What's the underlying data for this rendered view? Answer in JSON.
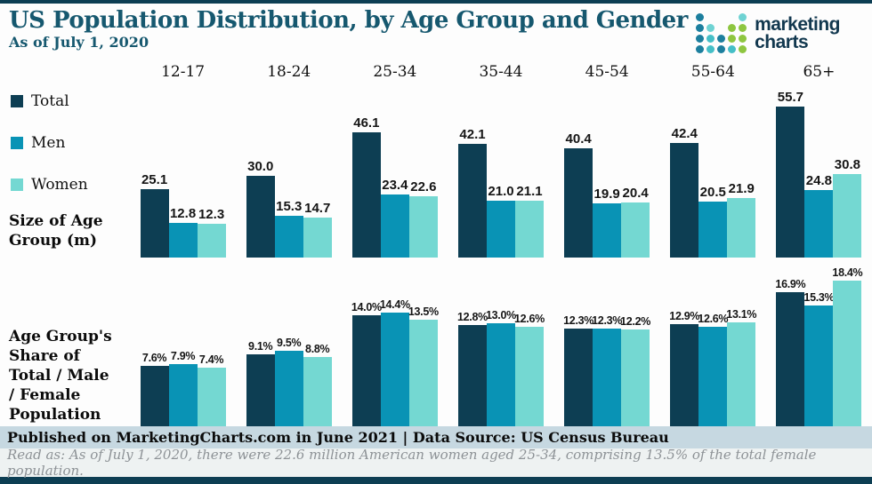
{
  "page": {
    "title": "US Population Distribution, by Age Group and Gender",
    "subtitle": "As of July 1, 2020",
    "footer": "Published on MarketingCharts.com in June 2021 | Data Source: US Census Bureau",
    "note": "Read as: As of July 1, 2020, there were 22.6 million American women aged 25-34, comprising 13.5% of the total female population."
  },
  "logo": {
    "text_line1": "marketing",
    "text_line2": "charts",
    "dot_colors": {
      "dark": "#1c7f9e",
      "mid": "#45bfc7",
      "green": "#8ec640",
      "light": "#6fd3d3"
    },
    "dot_grid": [
      [
        "dark",
        "",
        "",
        "",
        "light"
      ],
      [
        "dark",
        "light",
        "",
        "green",
        "green"
      ],
      [
        "dark",
        "mid",
        "dark",
        "green",
        "green"
      ],
      [
        "dark",
        "mid",
        "dark",
        "mid",
        "green"
      ]
    ]
  },
  "legend": [
    {
      "label": "Total",
      "color": "#0d3e53"
    },
    {
      "label": "Men",
      "color": "#0993b5"
    },
    {
      "label": "Women",
      "color": "#74d8d2"
    }
  ],
  "colors": {
    "accent_navy": "#0d3e53",
    "accent_teal": "#0993b5",
    "accent_cyan": "#74d8d2",
    "title_text": "#16586f",
    "footer_bg": "#c6d8e1",
    "note_bg": "#eef2f2"
  },
  "chart_data": [
    {
      "type": "bar",
      "title": "Size of Age Group (m)",
      "value_suffix": "",
      "categories": [
        "12-17",
        "18-24",
        "25-34",
        "35-44",
        "45-54",
        "55-64",
        "65+"
      ],
      "series": [
        {
          "name": "Total",
          "color": "#0d3e53",
          "values": [
            25.1,
            30.0,
            46.1,
            42.1,
            40.4,
            42.4,
            55.7
          ]
        },
        {
          "name": "Men",
          "color": "#0993b5",
          "values": [
            12.8,
            15.3,
            23.4,
            21.0,
            19.9,
            20.5,
            24.8
          ]
        },
        {
          "name": "Women",
          "color": "#74d8d2",
          "values": [
            12.3,
            14.7,
            22.6,
            21.1,
            20.4,
            21.9,
            30.8
          ]
        }
      ],
      "ylim": [
        0,
        60
      ],
      "legend_position": "left",
      "grid": false
    },
    {
      "type": "bar",
      "title": "Age Group's Share of Total / Male / Female Population",
      "value_suffix": "%",
      "categories": [
        "12-17",
        "18-24",
        "25-34",
        "35-44",
        "45-54",
        "55-64",
        "65+"
      ],
      "series": [
        {
          "name": "Total",
          "color": "#0d3e53",
          "values": [
            7.6,
            9.1,
            14.0,
            12.8,
            12.3,
            12.9,
            16.9
          ]
        },
        {
          "name": "Men",
          "color": "#0993b5",
          "values": [
            7.9,
            9.5,
            14.4,
            13.0,
            12.3,
            12.6,
            15.3
          ]
        },
        {
          "name": "Women",
          "color": "#74d8d2",
          "values": [
            7.4,
            8.8,
            13.5,
            12.6,
            12.2,
            13.1,
            18.4
          ]
        }
      ],
      "ylim": [
        0,
        20
      ],
      "grid": false
    }
  ]
}
